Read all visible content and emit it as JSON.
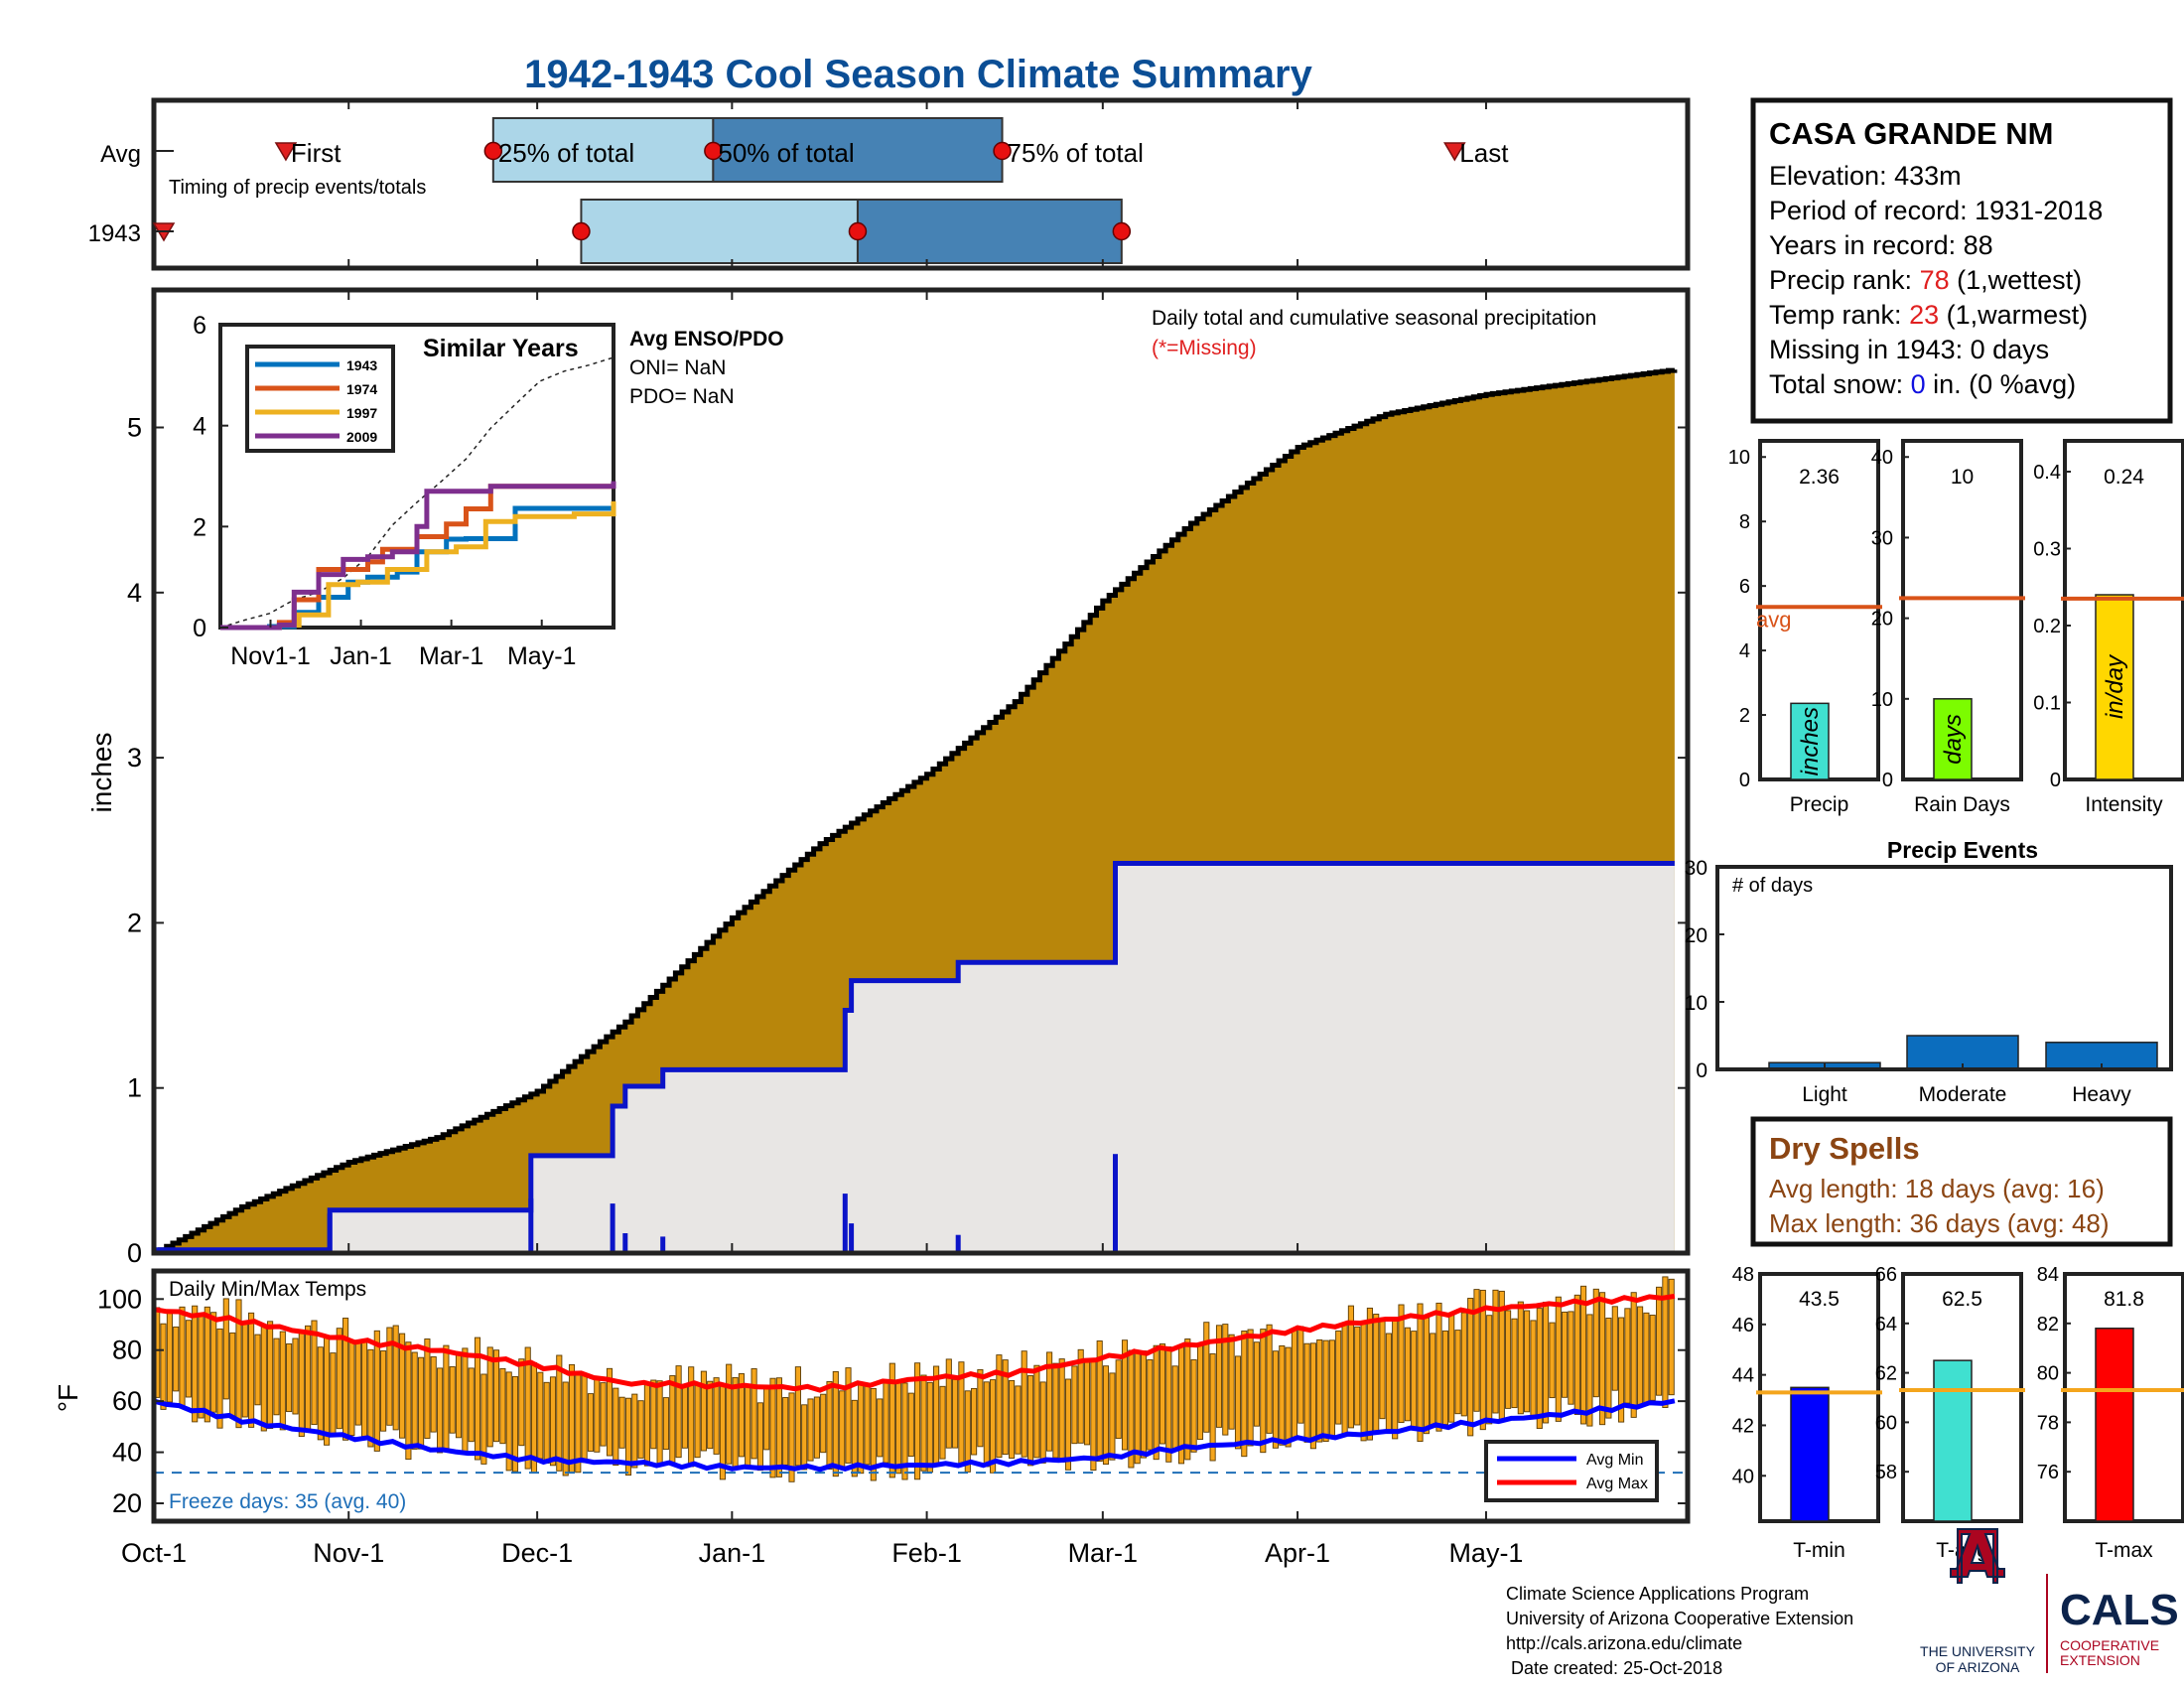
{
  "title": "1942-1943 Cool Season Climate Summary",
  "colors": {
    "title": "#0b4e95",
    "accent_red": "#e02020",
    "cum_fill": "#b8860b",
    "avg_fill": "#e8e6e4",
    "blue_line": "#0b14c8",
    "light_blue": "#acd6e8",
    "dark_blue": "#4682b4",
    "dry_spell_brown": "#8b4513",
    "orange_line": "#f4a51c"
  },
  "timing": {
    "row_labels": [
      "Avg",
      "1943"
    ],
    "caption": "Timing of precip events/totals",
    "avg_markers": {
      "first": "First",
      "p25": "25% of total",
      "p50": "50% of total",
      "p75": "75% of total",
      "last": "Last"
    },
    "dates": {
      "avg": {
        "first": "1942-10-22",
        "p25": "1942-11-24",
        "p50": "1942-12-29",
        "p75": "1943-02-13",
        "last": "1943-04-26"
      },
      "y1943": {
        "first": "1942-10-01",
        "p25": "1942-12-08",
        "p50": "1943-01-21",
        "p75": "1943-03-04"
      }
    }
  },
  "station": {
    "name": "CASA GRANDE NM",
    "elevation": "Elevation: 433m",
    "period": "Period of record: 1931-2018",
    "years": "Years in record: 88",
    "precip_rank_label": "Precip rank: ",
    "precip_rank_value": "78",
    "precip_rank_note": " (1,wettest)",
    "temp_rank_label": "Temp rank: ",
    "temp_rank_value": "23",
    "temp_rank_note": " (1,warmest)",
    "missing": "Missing in 1943: 0 days",
    "snow_label": "Total snow: ",
    "snow_value": "0",
    "snow_note": " in. (0 %avg)"
  },
  "main_chart": {
    "annotation": "Daily total and cumulative seasonal precipitation",
    "missing_note": "(*=Missing)",
    "ylabel": "inches"
  },
  "inset": {
    "title": "Similar Years",
    "enso_title": "Avg ENSO/PDO",
    "oni": "ONI= NaN",
    "pdo": "PDO= NaN"
  },
  "temp_panel": {
    "title": "Daily Min/Max Temps",
    "ylabel": "°F",
    "freeze_text": "Freeze days: 35 (avg. 40)",
    "legend": [
      "Avg Min",
      "Avg Max"
    ]
  },
  "bar_panels": [
    {
      "label": "Precip",
      "unit": "inches",
      "value_text": "2.36",
      "value": 2.36,
      "avg": 5.35,
      "ylim": [
        0,
        10.5
      ],
      "ticks": [
        0,
        2,
        4,
        6,
        8,
        10
      ],
      "color": "#40e0d0",
      "avg_label": "avg"
    },
    {
      "label": "Rain Days",
      "unit": "days",
      "value_text": "10",
      "value": 10,
      "avg": 22.5,
      "ylim": [
        0,
        42
      ],
      "ticks": [
        0,
        10,
        20,
        30,
        40
      ],
      "color": "#7cfc00",
      "avg_label": ""
    },
    {
      "label": "Intensity",
      "unit": "in/day",
      "value_text": "0.24",
      "value": 0.24,
      "avg": 0.235,
      "ylim": [
        0,
        0.44
      ],
      "ticks": [
        0,
        0.1,
        0.2,
        0.3,
        0.4
      ],
      "color": "#ffd700",
      "avg_label": ""
    }
  ],
  "precip_events": {
    "title": "Precip Events",
    "ylabel": "# of days",
    "ylim": [
      0,
      30
    ],
    "ticks": [
      0,
      10,
      20,
      30
    ],
    "categories": [
      "Light",
      "Moderate",
      "Heavy"
    ],
    "values": [
      1,
      5,
      4
    ]
  },
  "dry_spells": {
    "title": "Dry Spells",
    "avg": "Avg length: 18 days (avg: 16)",
    "max": "Max length: 36 days (avg: 48)"
  },
  "temp_bars": [
    {
      "label": "T-min",
      "value_text": "43.5",
      "value": 43.5,
      "avg": 43.3,
      "ylim": [
        38.2,
        48
      ],
      "ticks": [
        40,
        42,
        44,
        46,
        48
      ],
      "color": "#0000ff"
    },
    {
      "label": "T-avg",
      "value_text": "62.5",
      "value": 62.5,
      "avg": 61.3,
      "ylim": [
        56,
        66
      ],
      "ticks": [
        58,
        60,
        62,
        64,
        66
      ],
      "color": "#40e0d0"
    },
    {
      "label": "T-max",
      "value_text": "81.8",
      "value": 81.8,
      "avg": 79.3,
      "ylim": [
        74,
        84
      ],
      "ticks": [
        76,
        78,
        80,
        82,
        84
      ],
      "color": "#ff0000"
    }
  ],
  "footer": {
    "lines": [
      "Climate Science Applications Program",
      "University of Arizona Cooperative Extension",
      "http://cals.arizona.edu/climate",
      " Date created: 25-Oct-2018"
    ],
    "ua_logo_text": [
      "THE UNIVERSITY",
      "OF ARIZONA"
    ],
    "cals_text": "CALS",
    "cals_sub": [
      "COOPERATIVE",
      "EXTENSION"
    ]
  },
  "chart_data": [
    {
      "type": "area",
      "title": "Daily total and cumulative seasonal precipitation",
      "ylabel": "inches",
      "ylim": [
        0,
        5.85
      ],
      "x_tick_labels": [
        "Oct-1",
        "Nov-1",
        "Dec-1",
        "Jan-1",
        "Feb-1",
        "Mar-1",
        "Apr-1",
        "May-1"
      ],
      "avg_cumulative": {
        "dates": [
          "1942-10-01",
          "1942-10-15",
          "1942-11-01",
          "1942-11-15",
          "1942-12-01",
          "1942-12-15",
          "1943-01-01",
          "1943-01-15",
          "1943-02-01",
          "1943-02-15",
          "1943-03-01",
          "1943-03-15",
          "1943-04-01",
          "1943-04-15",
          "1943-05-01",
          "1943-05-31"
        ],
        "values": [
          0.0,
          0.28,
          0.55,
          0.7,
          0.98,
          1.4,
          2.03,
          2.48,
          2.9,
          3.34,
          3.95,
          4.42,
          4.88,
          5.08,
          5.2,
          5.35
        ]
      },
      "cumulative_1943": {
        "dates": [
          "1942-10-01",
          "1942-10-29",
          "1942-10-29",
          "1942-11-30",
          "1942-11-30",
          "1942-12-13",
          "1942-12-13",
          "1942-12-15",
          "1942-12-15",
          "1942-12-21",
          "1942-12-21",
          "1943-01-19",
          "1943-01-19",
          "1943-01-20",
          "1943-01-20",
          "1943-02-06",
          "1943-02-06",
          "1943-03-03",
          "1943-03-03",
          "1943-05-31"
        ],
        "values": [
          0.02,
          0.02,
          0.26,
          0.26,
          0.59,
          0.59,
          0.89,
          0.89,
          1.01,
          1.01,
          1.11,
          1.11,
          1.47,
          1.47,
          1.65,
          1.65,
          1.76,
          1.76,
          2.36,
          2.36
        ]
      },
      "daily": {
        "dates": [
          "1942-10-29",
          "1942-11-30",
          "1942-12-13",
          "1942-12-15",
          "1942-12-21",
          "1943-01-19",
          "1943-01-20",
          "1943-02-06",
          "1943-03-03"
        ],
        "values": [
          0.24,
          0.33,
          0.3,
          0.12,
          0.1,
          0.36,
          0.18,
          0.11,
          0.6
        ]
      }
    },
    {
      "type": "line",
      "title": "Similar Years",
      "x_tick_labels": [
        "Nov1-1",
        "Jan-1",
        "Mar-1",
        "May-1"
      ],
      "ylim": [
        0,
        6
      ],
      "series": [
        {
          "name": "1943",
          "color": "#0072bd",
          "months": [
            0,
            1,
            1.5,
            2,
            2.6,
            3,
            3.6,
            4,
            4.6,
            5,
            6,
            8
          ],
          "values": [
            0,
            0.02,
            0.3,
            0.6,
            0.9,
            1.0,
            1.1,
            1.5,
            1.75,
            1.76,
            2.36,
            2.36
          ]
        },
        {
          "name": "1974",
          "color": "#d95319",
          "months": [
            0,
            1.2,
            1.5,
            2,
            2.5,
            3,
            3.3,
            4,
            4.6,
            5,
            5.5,
            8
          ],
          "values": [
            0,
            0.1,
            0.55,
            1.15,
            1.15,
            1.3,
            1.55,
            1.8,
            2.05,
            2.35,
            2.8,
            2.8
          ]
        },
        {
          "name": "1997",
          "color": "#edb120",
          "months": [
            0,
            1.2,
            1.6,
            2.2,
            2.8,
            3.4,
            4.2,
            4.8,
            5.4,
            6,
            7.2,
            8
          ],
          "values": [
            0,
            0.05,
            0.25,
            0.85,
            0.9,
            1.15,
            1.5,
            1.6,
            2.1,
            2.2,
            2.25,
            2.5
          ]
        },
        {
          "name": "2009",
          "color": "#7e2f8e",
          "months": [
            0,
            1.2,
            1.5,
            2,
            2.5,
            3,
            3.5,
            4,
            4.2,
            5.5,
            8
          ],
          "values": [
            0,
            0.05,
            0.7,
            1.05,
            1.35,
            1.4,
            1.5,
            2.0,
            2.7,
            2.8,
            2.9
          ]
        }
      ],
      "average": {
        "months": [
          0,
          0.5,
          1,
          1.5,
          2,
          2.5,
          3,
          3.5,
          4,
          4.5,
          5,
          5.5,
          6,
          6.5,
          7,
          7.5,
          8
        ],
        "values": [
          0,
          0.15,
          0.28,
          0.55,
          0.7,
          0.98,
          1.4,
          2.03,
          2.48,
          2.9,
          3.34,
          3.95,
          4.42,
          4.88,
          5.08,
          5.2,
          5.35
        ]
      }
    },
    {
      "type": "bar",
      "title": "Daily Min/Max Temps",
      "ylabel": "°F",
      "ylim": [
        13,
        111
      ],
      "y_ticks": [
        20,
        40,
        60,
        80,
        100
      ],
      "freeze_line": 32,
      "avg_max": {
        "days": [
          0,
          15,
          31,
          45,
          61,
          75,
          92,
          106,
          123,
          137,
          151,
          165,
          182,
          196,
          212,
          228,
          242
        ],
        "values": [
          96,
          91,
          84,
          80,
          74,
          67,
          66,
          65,
          69,
          71,
          77,
          82,
          88,
          92,
          96,
          99,
          101
        ]
      },
      "avg_min": {
        "days": [
          0,
          15,
          31,
          45,
          61,
          75,
          92,
          106,
          123,
          137,
          151,
          165,
          182,
          196,
          212,
          228,
          242
        ],
        "values": [
          60,
          52,
          46,
          41,
          37,
          36,
          34,
          34,
          35,
          36,
          38,
          42,
          45,
          48,
          52,
          56,
          60
        ]
      }
    }
  ]
}
